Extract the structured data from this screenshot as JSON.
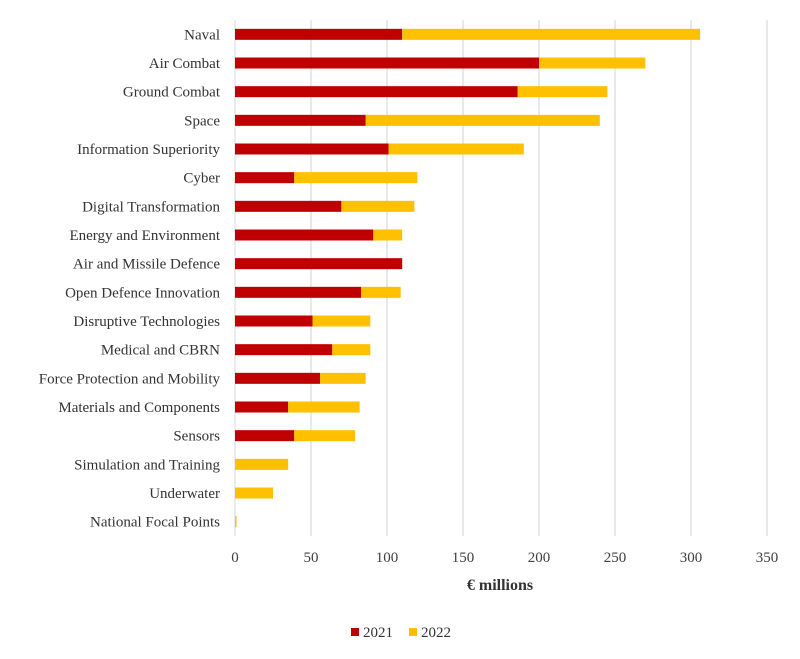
{
  "chart_data": {
    "type": "bar",
    "orientation": "horizontal",
    "stacked": true,
    "categories": [
      "Naval",
      "Air Combat",
      "Ground Combat",
      "Space",
      "Information Superiority",
      "Cyber",
      "Digital Transformation",
      "Energy and Environment",
      "Air and Missile Defence",
      "Open Defence Innovation",
      "Disruptive Technologies",
      "Medical and CBRN",
      "Force Protection and Mobility",
      "Materials and Components",
      "Sensors",
      "Simulation and Training",
      "Underwater",
      "National Focal Points"
    ],
    "series": [
      {
        "name": "2021",
        "color": "#c00000",
        "values": [
          110,
          200,
          186,
          86,
          101,
          39,
          70,
          91,
          110,
          83,
          51,
          64,
          56,
          35,
          39,
          0,
          0,
          0
        ]
      },
      {
        "name": "2022",
        "color": "#ffc000",
        "values": [
          196,
          70,
          59,
          154,
          89,
          81,
          48,
          19,
          0,
          26,
          38,
          25,
          30,
          47,
          40,
          35,
          25,
          1
        ]
      }
    ],
    "title": "",
    "xlabel": "€ millions",
    "ylabel": "",
    "xlim": [
      0,
      350
    ],
    "xticks": [
      0,
      50,
      100,
      150,
      200,
      250,
      300,
      350
    ],
    "grid": "vertical",
    "legend_position": "bottom"
  }
}
